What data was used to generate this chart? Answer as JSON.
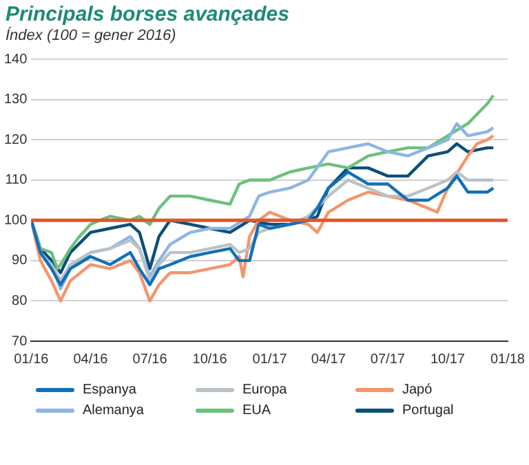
{
  "chart_data": {
    "type": "line",
    "title": "Principals borses avançades",
    "subtitle": "Índex (100 = gener 2016)",
    "xlim": [
      "2016-01-01",
      "2018-01-01"
    ],
    "xticks": [
      {
        "value": "2016-01-01",
        "label": "01/16"
      },
      {
        "value": "2016-04-01",
        "label": "04/16"
      },
      {
        "value": "2016-07-01",
        "label": "07/16"
      },
      {
        "value": "2016-10-01",
        "label": "10/16"
      },
      {
        "value": "2017-01-01",
        "label": "01/17"
      },
      {
        "value": "2017-04-01",
        "label": "04/17"
      },
      {
        "value": "2017-07-01",
        "label": "07/17"
      },
      {
        "value": "2017-10-01",
        "label": "10/17"
      },
      {
        "value": "2018-01-01",
        "label": "01/18"
      }
    ],
    "ylim": [
      70,
      140
    ],
    "yticks": [
      70,
      80,
      90,
      100,
      110,
      120,
      130,
      140
    ],
    "grid": "y",
    "legend": "bottom",
    "marker": "none",
    "line_style": "solid",
    "ref_lines": [
      {
        "axis": "y",
        "value": 100,
        "color": "#e4542b"
      }
    ],
    "series": [
      {
        "name": "Espanya",
        "color": "#1170b8",
        "x": [
          "2016-01-01",
          "2016-01-15",
          "2016-02-01",
          "2016-02-15",
          "2016-03-01",
          "2016-04-01",
          "2016-05-01",
          "2016-06-01",
          "2016-06-15",
          "2016-07-01",
          "2016-07-15",
          "2016-08-01",
          "2016-09-01",
          "2016-10-01",
          "2016-11-01",
          "2016-11-15",
          "2016-12-01",
          "2016-12-15",
          "2017-01-01",
          "2017-02-01",
          "2017-03-01",
          "2017-03-15",
          "2017-04-01",
          "2017-05-01",
          "2017-06-01",
          "2017-07-01",
          "2017-08-01",
          "2017-09-01",
          "2017-10-01",
          "2017-10-15",
          "2017-11-01",
          "2017-12-01",
          "2017-12-10"
        ],
        "values": [
          100,
          92,
          88,
          84,
          88,
          91,
          89,
          92,
          88,
          84,
          88,
          89,
          91,
          92,
          93,
          90,
          90,
          99,
          98,
          99,
          100,
          103,
          108,
          112,
          109,
          109,
          105,
          105,
          108,
          111,
          107,
          107,
          108
        ]
      },
      {
        "name": "Europa",
        "color": "#b9c3c7",
        "x": [
          "2016-01-01",
          "2016-01-15",
          "2016-02-01",
          "2016-02-15",
          "2016-03-01",
          "2016-04-01",
          "2016-05-01",
          "2016-06-01",
          "2016-06-15",
          "2016-07-01",
          "2016-07-15",
          "2016-08-01",
          "2016-09-01",
          "2016-10-01",
          "2016-11-01",
          "2016-11-15",
          "2016-12-01",
          "2016-12-15",
          "2017-01-01",
          "2017-02-01",
          "2017-03-01",
          "2017-04-01",
          "2017-05-01",
          "2017-06-01",
          "2017-07-01",
          "2017-08-01",
          "2017-09-01",
          "2017-10-01",
          "2017-10-15",
          "2017-11-01",
          "2017-12-01",
          "2017-12-10"
        ],
        "values": [
          100,
          92,
          89,
          85,
          89,
          92,
          93,
          95,
          93,
          85,
          89,
          92,
          92,
          93,
          94,
          92,
          93,
          97,
          98,
          99,
          101,
          106,
          110,
          108,
          106,
          106,
          108,
          110,
          112,
          110,
          110,
          110
        ]
      },
      {
        "name": "Japó",
        "color": "#f4956c",
        "x": [
          "2016-01-01",
          "2016-01-15",
          "2016-02-01",
          "2016-02-15",
          "2016-03-01",
          "2016-04-01",
          "2016-05-01",
          "2016-06-01",
          "2016-06-15",
          "2016-07-01",
          "2016-07-15",
          "2016-08-01",
          "2016-09-01",
          "2016-10-01",
          "2016-11-01",
          "2016-11-15",
          "2016-11-21",
          "2016-12-01",
          "2016-12-15",
          "2017-01-01",
          "2017-02-01",
          "2017-03-01",
          "2017-03-15",
          "2017-04-01",
          "2017-05-01",
          "2017-06-01",
          "2017-07-01",
          "2017-08-01",
          "2017-09-01",
          "2017-09-15",
          "2017-10-01",
          "2017-11-01",
          "2017-11-15",
          "2017-12-01",
          "2017-12-10"
        ],
        "values": [
          100,
          90,
          85,
          80,
          85,
          89,
          88,
          90,
          87,
          80,
          84,
          87,
          87,
          88,
          89,
          91,
          86,
          96,
          100,
          102,
          100,
          99,
          97,
          102,
          105,
          107,
          106,
          105,
          103,
          102,
          108,
          116,
          119,
          120,
          121
        ]
      },
      {
        "name": "Alemanya",
        "color": "#8db5e2",
        "x": [
          "2016-01-01",
          "2016-01-15",
          "2016-02-01",
          "2016-02-15",
          "2016-03-01",
          "2016-04-01",
          "2016-05-01",
          "2016-06-01",
          "2016-06-15",
          "2016-07-01",
          "2016-07-15",
          "2016-08-01",
          "2016-09-01",
          "2016-10-01",
          "2016-11-01",
          "2016-12-01",
          "2016-12-15",
          "2017-01-01",
          "2017-02-01",
          "2017-03-01",
          "2017-04-01",
          "2017-05-01",
          "2017-06-01",
          "2017-07-01",
          "2017-08-01",
          "2017-09-01",
          "2017-10-01",
          "2017-10-15",
          "2017-11-01",
          "2017-12-01",
          "2017-12-10"
        ],
        "values": [
          100,
          92,
          89,
          83,
          88,
          92,
          93,
          96,
          93,
          86,
          90,
          94,
          97,
          98,
          98,
          101,
          106,
          107,
          108,
          110,
          117,
          118,
          119,
          117,
          116,
          118,
          120,
          124,
          121,
          122,
          123
        ]
      },
      {
        "name": "EUA",
        "color": "#6cc07c",
        "x": [
          "2016-01-01",
          "2016-01-15",
          "2016-02-01",
          "2016-02-10",
          "2016-02-15",
          "2016-03-01",
          "2016-03-15",
          "2016-04-01",
          "2016-04-15",
          "2016-05-01",
          "2016-06-01",
          "2016-06-15",
          "2016-07-01",
          "2016-07-15",
          "2016-08-01",
          "2016-09-01",
          "2016-10-01",
          "2016-11-01",
          "2016-11-15",
          "2016-12-01",
          "2017-01-01",
          "2017-02-01",
          "2017-03-01",
          "2017-04-01",
          "2017-05-01",
          "2017-06-01",
          "2017-07-01",
          "2017-08-01",
          "2017-09-01",
          "2017-10-01",
          "2017-11-01",
          "2017-12-01",
          "2017-12-10"
        ],
        "values": [
          100,
          93,
          92,
          88,
          89,
          93,
          96,
          99,
          100,
          101,
          100,
          101,
          99,
          103,
          106,
          106,
          105,
          104,
          109,
          110,
          110,
          112,
          113,
          114,
          113,
          116,
          117,
          118,
          118,
          121,
          124,
          129,
          131
        ]
      },
      {
        "name": "Portugal",
        "color": "#0c4e7a",
        "x": [
          "2016-01-01",
          "2016-01-15",
          "2016-02-01",
          "2016-02-15",
          "2016-03-01",
          "2016-04-01",
          "2016-05-01",
          "2016-06-01",
          "2016-06-15",
          "2016-07-01",
          "2016-07-15",
          "2016-08-01",
          "2016-09-01",
          "2016-10-01",
          "2016-11-01",
          "2016-12-01",
          "2017-01-01",
          "2017-02-01",
          "2017-03-01",
          "2017-03-15",
          "2017-04-01",
          "2017-05-01",
          "2017-06-01",
          "2017-07-01",
          "2017-08-01",
          "2017-09-01",
          "2017-10-01",
          "2017-10-15",
          "2017-11-01",
          "2017-12-01",
          "2017-12-10"
        ],
        "values": [
          100,
          93,
          90,
          87,
          92,
          97,
          98,
          99,
          97,
          88,
          96,
          100,
          99,
          98,
          97,
          100,
          99,
          99,
          100,
          101,
          108,
          113,
          113,
          111,
          111,
          116,
          117,
          119,
          117,
          118,
          118
        ]
      }
    ]
  }
}
